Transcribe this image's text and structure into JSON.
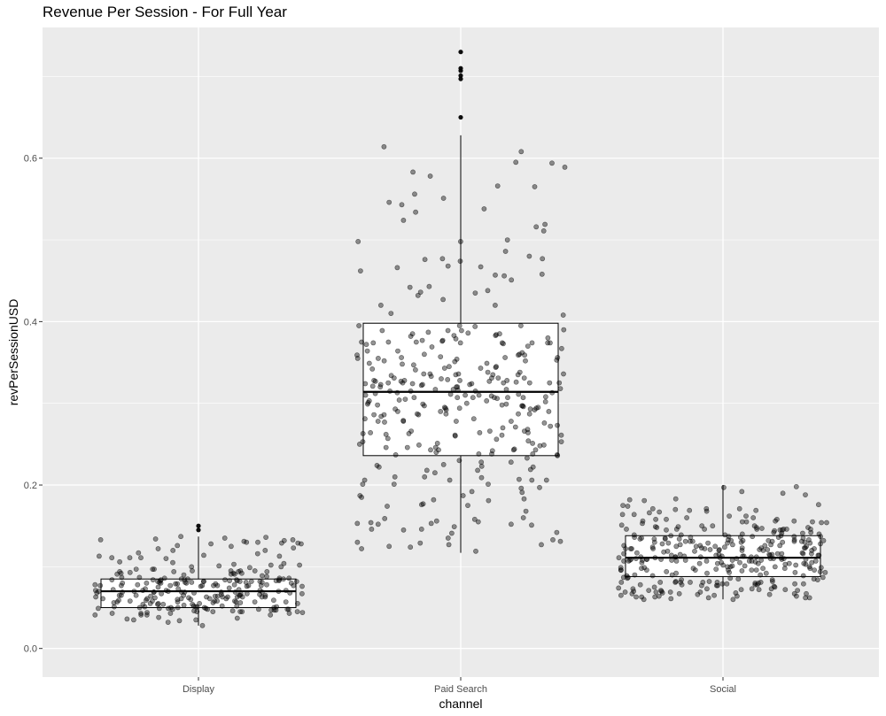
{
  "chart_data": {
    "type": "boxplot",
    "title": "Revenue Per Session - For Full Year",
    "xlabel": "channel",
    "ylabel": "revPerSessionUSD",
    "ylim": [
      -0.035,
      0.76
    ],
    "y_ticks": [
      0.0,
      0.2,
      0.4,
      0.6
    ],
    "y_tick_labels": [
      "0.0",
      "0.2",
      "0.4",
      "0.6"
    ],
    "categories": [
      "Display",
      "Paid Search",
      "Social"
    ],
    "grid": true,
    "legend": "none",
    "colors": {
      "panel": "#ebebeb",
      "grid_major": "#ffffff",
      "box_fill": "#ffffff",
      "box_line": "#000000",
      "point": "#000000"
    },
    "series": [
      {
        "category": "Display",
        "box": {
          "lower_whisker": 0.028,
          "q1": 0.05,
          "median": 0.07,
          "q3": 0.085,
          "upper_whisker": 0.137
        },
        "outliers": [
          0.145,
          0.15
        ],
        "points": [
          0.095,
          0.054,
          0.061,
          0.076,
          0.057,
          0.058,
          0.093,
          0.07,
          0.092,
          0.094,
          0.077,
          0.086,
          0.071,
          0.07,
          0.064,
          0.071,
          0.078,
          0.048,
          0.083,
          0.041,
          0.057,
          0.095,
          0.076,
          0.043,
          0.058,
          0.05,
          0.071,
          0.047,
          0.069,
          0.065,
          0.065,
          0.058,
          0.036,
          0.083,
          0.105,
          0.055,
          0.045,
          0.081,
          0.082,
          0.041,
          0.081,
          0.051,
          0.12,
          0.055,
          0.049,
          0.102,
          0.056,
          0.091,
          0.058,
          0.072,
          0.094,
          0.06,
          0.065,
          0.044,
          0.094,
          0.057,
          0.085,
          0.08,
          0.053,
          0.07,
          0.08,
          0.087,
          0.092,
          0.041,
          0.069,
          0.097,
          0.061,
          0.087,
          0.063,
          0.046,
          0.063,
          0.047,
          0.052,
          0.045,
          0.049,
          0.061,
          0.085,
          0.076,
          0.046,
          0.062,
          0.051,
          0.077,
          0.065,
          0.028,
          0.085,
          0.066,
          0.068,
          0.063,
          0.083,
          0.079,
          0.089,
          0.037,
          0.084,
          0.066,
          0.067,
          0.045,
          0.035,
          0.045,
          0.091,
          0.047,
          0.077,
          0.072,
          0.084,
          0.043,
          0.043,
          0.051,
          0.062,
          0.081,
          0.038,
          0.05,
          0.054,
          0.069,
          0.034,
          0.09,
          0.063,
          0.067,
          0.045,
          0.088,
          0.082,
          0.044,
          0.064,
          0.059,
          0.075,
          0.078,
          0.061,
          0.05,
          0.074,
          0.083,
          0.078,
          0.035,
          0.091,
          0.057,
          0.084,
          0.065,
          0.056,
          0.117,
          0.069,
          0.08,
          0.084,
          0.063,
          0.07,
          0.048,
          0.073,
          0.054,
          0.059,
          0.048,
          0.082,
          0.095,
          0.077,
          0.078,
          0.077,
          0.08,
          0.052,
          0.068,
          0.069,
          0.086,
          0.11,
          0.071,
          0.069,
          0.079,
          0.051,
          0.077,
          0.065,
          0.094,
          0.095,
          0.063,
          0.067,
          0.032,
          0.05,
          0.054,
          0.048,
          0.081,
          0.056,
          0.084,
          0.049,
          0.102,
          0.043,
          0.059,
          0.079,
          0.055,
          0.041,
          0.067,
          0.082,
          0.063,
          0.069,
          0.082,
          0.081,
          0.082,
          0.065,
          0.052,
          0.064,
          0.08,
          0.057,
          0.077,
          0.092,
          0.051,
          0.06,
          0.077,
          0.082,
          0.084,
          0.058,
          0.071,
          0.069,
          0.084,
          0.077,
          0.049,
          0.086,
          0.048,
          0.063,
          0.05,
          0.083,
          0.055,
          0.061,
          0.073,
          0.126,
          0.068,
          0.129,
          0.133,
          0.137,
          0.12,
          0.111,
          0.129,
          0.134,
          0.123,
          0.131,
          0.128,
          0.13,
          0.1,
          0.103,
          0.1,
          0.122,
          0.116,
          0.101,
          0.135,
          0.128,
          0.111,
          0.132,
          0.099,
          0.113,
          0.125,
          0.097,
          0.136,
          0.13,
          0.133,
          0.114,
          0.113,
          0.097,
          0.106,
          0.111,
          0.104
        ]
      },
      {
        "category": "Paid Search",
        "box": {
          "lower_whisker": 0.117,
          "q1": 0.236,
          "median": 0.314,
          "q3": 0.398,
          "upper_whisker": 0.628
        },
        "outliers": [
          0.65,
          0.697,
          0.701,
          0.707,
          0.71,
          0.73
        ],
        "points": [
          0.307,
          0.385,
          0.336,
          0.243,
          0.287,
          0.261,
          0.373,
          0.29,
          0.325,
          0.254,
          0.326,
          0.279,
          0.375,
          0.328,
          0.246,
          0.387,
          0.278,
          0.395,
          0.303,
          0.297,
          0.349,
          0.302,
          0.293,
          0.281,
          0.263,
          0.36,
          0.374,
          0.327,
          0.315,
          0.32,
          0.352,
          0.329,
          0.266,
          0.303,
          0.299,
          0.323,
          0.31,
          0.324,
          0.359,
          0.295,
          0.324,
          0.336,
          0.297,
          0.296,
          0.305,
          0.313,
          0.384,
          0.272,
          0.33,
          0.261,
          0.325,
          0.306,
          0.379,
          0.385,
          0.3,
          0.389,
          0.27,
          0.299,
          0.375,
          0.382,
          0.372,
          0.315,
          0.292,
          0.294,
          0.36,
          0.359,
          0.298,
          0.261,
          0.331,
          0.238,
          0.318,
          0.297,
          0.328,
          0.293,
          0.367,
          0.331,
          0.345,
          0.286,
          0.362,
          0.243,
          0.344,
          0.328,
          0.308,
          0.317,
          0.263,
          0.256,
          0.284,
          0.325,
          0.39,
          0.29,
          0.345,
          0.299,
          0.325,
          0.389,
          0.338,
          0.253,
          0.395,
          0.311,
          0.246,
          0.348,
          0.307,
          0.301,
          0.375,
          0.251,
          0.377,
          0.294,
          0.242,
          0.266,
          0.257,
          0.286,
          0.264,
          0.394,
          0.307,
          0.321,
          0.307,
          0.315,
          0.327,
          0.331,
          0.355,
          0.341,
          0.238,
          0.278,
          0.307,
          0.374,
          0.364,
          0.325,
          0.331,
          0.376,
          0.395,
          0.277,
          0.364,
          0.298,
          0.268,
          0.335,
          0.356,
          0.354,
          0.328,
          0.335,
          0.25,
          0.324,
          0.322,
          0.24,
          0.343,
          0.294,
          0.342,
          0.31,
          0.276,
          0.374,
          0.31,
          0.313,
          0.266,
          0.237,
          0.349,
          0.278,
          0.29,
          0.338,
          0.336,
          0.237,
          0.249,
          0.312,
          0.333,
          0.238,
          0.336,
          0.311,
          0.26,
          0.309,
          0.386,
          0.253,
          0.281,
          0.248,
          0.244,
          0.295,
          0.369,
          0.32,
          0.246,
          0.323,
          0.377,
          0.351,
          0.359,
          0.32,
          0.357,
          0.37,
          0.236,
          0.316,
          0.251,
          0.292,
          0.264,
          0.307,
          0.38,
          0.356,
          0.273,
          0.389,
          0.343,
          0.356,
          0.287,
          0.383,
          0.352,
          0.374,
          0.347,
          0.264,
          0.262,
          0.287,
          0.334,
          0.355,
          0.243,
          0.286,
          0.249,
          0.327,
          0.353,
          0.317,
          0.325,
          0.287,
          0.304,
          0.243,
          0.317,
          0.335,
          0.278,
          0.383,
          0.374,
          0.374,
          0.271,
          0.323,
          0.228,
          0.224,
          0.209,
          0.124,
          0.127,
          0.201,
          0.142,
          0.187,
          0.16,
          0.233,
          0.141,
          0.152,
          0.218,
          0.206,
          0.133,
          0.125,
          0.13,
          0.215,
          0.156,
          0.222,
          0.182,
          0.149,
          0.119,
          0.196,
          0.175,
          0.153,
          0.206,
          0.187,
          0.228,
          0.122,
          0.153,
          0.218,
          0.154,
          0.159,
          0.21,
          0.131,
          0.155,
          0.127,
          0.225,
          0.197,
          0.146,
          0.207,
          0.206,
          0.135,
          0.129,
          0.191,
          0.206,
          0.176,
          0.223,
          0.21,
          0.201,
          0.23,
          0.192,
          0.185,
          0.177,
          0.146,
          0.222,
          0.145,
          0.201,
          0.158,
          0.183,
          0.219,
          0.181,
          0.151,
          0.174,
          0.168,
          0.152,
          0.42,
          0.608,
          0.614,
          0.435,
          0.427,
          0.458,
          0.538,
          0.543,
          0.516,
          0.534,
          0.519,
          0.457,
          0.565,
          0.451,
          0.462,
          0.477,
          0.589,
          0.595,
          0.432,
          0.41,
          0.546,
          0.466,
          0.443,
          0.511,
          0.578,
          0.456,
          0.524,
          0.556,
          0.438,
          0.467,
          0.551,
          0.468,
          0.477,
          0.583,
          0.442,
          0.594,
          0.5,
          0.476,
          0.42,
          0.566,
          0.48,
          0.498,
          0.486,
          0.498,
          0.436,
          0.474,
          0.408
        ]
      },
      {
        "category": "Social",
        "box": {
          "lower_whisker": 0.06,
          "q1": 0.088,
          "median": 0.111,
          "q3": 0.138,
          "upper_whisker": 0.2
        },
        "outliers": [],
        "points": [
          0.103,
          0.104,
          0.13,
          0.104,
          0.097,
          0.115,
          0.093,
          0.128,
          0.12,
          0.096,
          0.114,
          0.099,
          0.112,
          0.13,
          0.116,
          0.106,
          0.131,
          0.134,
          0.094,
          0.112,
          0.092,
          0.114,
          0.109,
          0.136,
          0.126,
          0.114,
          0.107,
          0.112,
          0.129,
          0.123,
          0.125,
          0.115,
          0.1,
          0.124,
          0.132,
          0.096,
          0.125,
          0.113,
          0.109,
          0.121,
          0.133,
          0.129,
          0.108,
          0.116,
          0.1,
          0.122,
          0.112,
          0.105,
          0.101,
          0.107,
          0.117,
          0.133,
          0.121,
          0.119,
          0.128,
          0.093,
          0.105,
          0.108,
          0.12,
          0.102,
          0.112,
          0.137,
          0.096,
          0.136,
          0.109,
          0.108,
          0.131,
          0.104,
          0.098,
          0.092,
          0.137,
          0.108,
          0.116,
          0.119,
          0.104,
          0.11,
          0.108,
          0.126,
          0.132,
          0.137,
          0.089,
          0.125,
          0.129,
          0.11,
          0.09,
          0.096,
          0.11,
          0.127,
          0.115,
          0.096,
          0.096,
          0.125,
          0.131,
          0.113,
          0.107,
          0.118,
          0.107,
          0.12,
          0.134,
          0.126,
          0.099,
          0.132,
          0.098,
          0.122,
          0.1,
          0.131,
          0.131,
          0.127,
          0.137,
          0.123,
          0.123,
          0.116,
          0.13,
          0.099,
          0.111,
          0.104,
          0.105,
          0.089,
          0.127,
          0.094,
          0.105,
          0.103,
          0.092,
          0.093,
          0.098,
          0.096,
          0.126,
          0.089,
          0.123,
          0.121,
          0.116,
          0.135,
          0.121,
          0.09,
          0.102,
          0.108,
          0.101,
          0.111,
          0.114,
          0.12,
          0.132,
          0.111,
          0.113,
          0.112,
          0.115,
          0.095,
          0.135,
          0.122,
          0.113,
          0.122,
          0.1,
          0.11,
          0.134,
          0.129,
          0.122,
          0.098,
          0.136,
          0.107,
          0.122,
          0.117,
          0.096,
          0.131,
          0.09,
          0.109,
          0.136,
          0.111,
          0.134,
          0.098,
          0.109,
          0.135,
          0.114,
          0.123,
          0.107,
          0.13,
          0.124,
          0.133,
          0.11,
          0.109,
          0.107,
          0.081,
          0.067,
          0.069,
          0.064,
          0.066,
          0.072,
          0.08,
          0.076,
          0.079,
          0.079,
          0.069,
          0.086,
          0.06,
          0.081,
          0.078,
          0.081,
          0.068,
          0.073,
          0.074,
          0.065,
          0.067,
          0.063,
          0.085,
          0.062,
          0.082,
          0.064,
          0.079,
          0.081,
          0.069,
          0.073,
          0.084,
          0.075,
          0.084,
          0.063,
          0.072,
          0.062,
          0.081,
          0.07,
          0.087,
          0.081,
          0.062,
          0.077,
          0.081,
          0.073,
          0.073,
          0.079,
          0.081,
          0.084,
          0.077,
          0.06,
          0.082,
          0.071,
          0.082,
          0.077,
          0.087,
          0.08,
          0.067,
          0.061,
          0.068,
          0.087,
          0.069,
          0.067,
          0.075,
          0.07,
          0.072,
          0.066,
          0.078,
          0.064,
          0.078,
          0.071,
          0.071,
          0.063,
          0.086,
          0.065,
          0.078,
          0.085,
          0.146,
          0.142,
          0.16,
          0.167,
          0.166,
          0.145,
          0.176,
          0.156,
          0.16,
          0.145,
          0.169,
          0.15,
          0.144,
          0.147,
          0.164,
          0.155,
          0.146,
          0.171,
          0.168,
          0.155,
          0.149,
          0.139,
          0.171,
          0.146,
          0.138,
          0.181,
          0.158,
          0.146,
          0.146,
          0.155,
          0.15,
          0.175,
          0.153,
          0.158,
          0.149,
          0.156,
          0.162,
          0.146,
          0.169,
          0.156,
          0.146,
          0.148,
          0.14,
          0.148,
          0.164,
          0.183,
          0.139,
          0.139,
          0.141,
          0.158,
          0.198,
          0.151,
          0.174,
          0.188,
          0.15,
          0.171,
          0.138,
          0.154,
          0.141,
          0.154,
          0.14,
          0.192,
          0.148,
          0.142,
          0.145,
          0.19,
          0.182,
          0.197,
          0.17,
          0.162
        ]
      }
    ]
  }
}
